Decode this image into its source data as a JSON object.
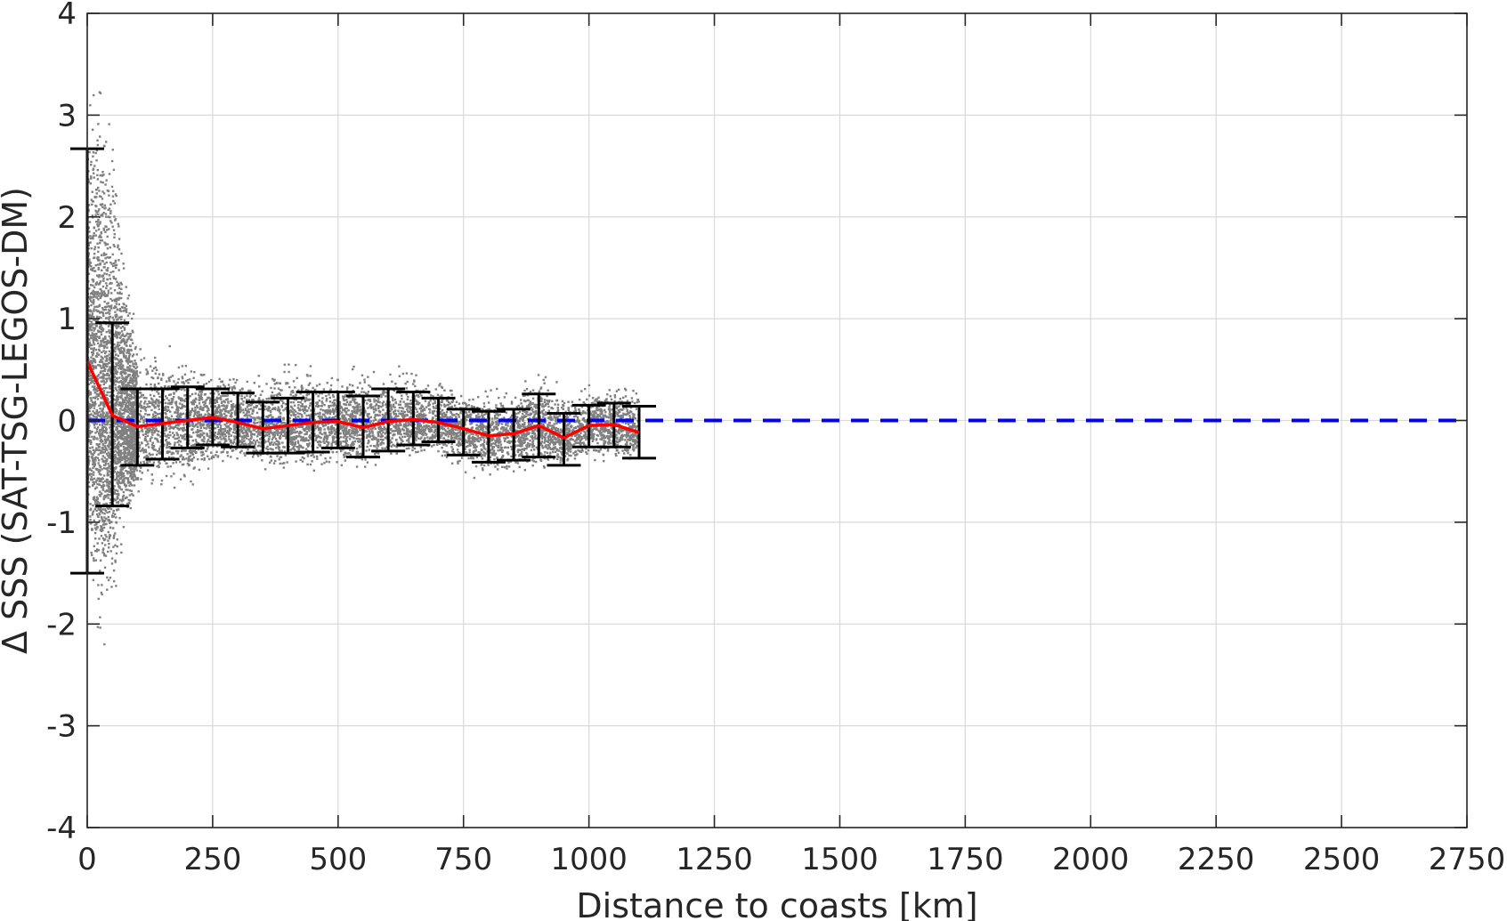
{
  "chart_data": {
    "type": "scatter",
    "title": "",
    "xlabel": "Distance to coasts [km]",
    "ylabel": "Δ SSS (SAT-TSG-LEGOS-DM)",
    "xlim": [
      0,
      2750
    ],
    "ylim": [
      -4,
      4
    ],
    "xticks": [
      "0",
      "250",
      "500",
      "750",
      "1000",
      "1250",
      "1500",
      "1750",
      "2000",
      "2250",
      "2500",
      "2750"
    ],
    "yticks": [
      "-4",
      "-3",
      "-2",
      "-1",
      "0",
      "1",
      "2",
      "3",
      "4"
    ],
    "grid": true,
    "legend": "none",
    "colors": {
      "scatter": "#808080",
      "mean_line": "#ff0000",
      "errorbars": "#000000",
      "zero_line": "#0000ff",
      "grid": "#d9d9d9",
      "axes": "#262626"
    },
    "scatter_envelope": {
      "description_of_visible_cloud": "dense grey points",
      "x": [
        0,
        25,
        50,
        75,
        100,
        150,
        200,
        250,
        300,
        350,
        400,
        450,
        500,
        550,
        600,
        650,
        700,
        750,
        800,
        850,
        900,
        950,
        1000,
        1050,
        1100
      ],
      "y_low": [
        -1.6,
        -2.6,
        -2.0,
        -1.2,
        -0.9,
        -0.8,
        -0.9,
        -0.55,
        -0.5,
        -0.5,
        -0.5,
        -0.55,
        -0.5,
        -0.55,
        -0.45,
        -0.4,
        -0.4,
        -0.55,
        -0.65,
        -0.6,
        -0.6,
        -0.5,
        -0.45,
        -0.45,
        -0.4
      ],
      "y_high": [
        3.2,
        4.0,
        3.0,
        1.8,
        1.0,
        0.8,
        0.65,
        0.55,
        0.5,
        0.5,
        0.7,
        0.6,
        0.55,
        0.55,
        0.6,
        0.55,
        0.45,
        0.35,
        0.35,
        0.4,
        0.55,
        0.35,
        0.4,
        0.4,
        0.4
      ]
    },
    "mean_line": {
      "x": [
        0,
        50,
        100,
        150,
        200,
        250,
        300,
        350,
        400,
        450,
        500,
        550,
        600,
        650,
        700,
        750,
        800,
        850,
        900,
        950,
        1000,
        1050,
        1100
      ],
      "y": [
        0.58,
        0.05,
        -0.06,
        -0.03,
        0.0,
        0.03,
        -0.02,
        -0.08,
        -0.05,
        -0.02,
        -0.01,
        -0.07,
        -0.01,
        0.01,
        -0.02,
        -0.08,
        -0.15,
        -0.13,
        -0.05,
        -0.17,
        -0.05,
        -0.04,
        -0.12
      ]
    },
    "error_bars": {
      "x": [
        0,
        50,
        100,
        150,
        200,
        250,
        300,
        350,
        400,
        450,
        500,
        550,
        600,
        650,
        700,
        750,
        800,
        850,
        900,
        950,
        1000,
        1050,
        1100
      ],
      "upper": [
        2.67,
        0.96,
        0.31,
        0.31,
        0.33,
        0.31,
        0.27,
        0.18,
        0.22,
        0.28,
        0.28,
        0.24,
        0.31,
        0.28,
        0.22,
        0.11,
        0.09,
        0.11,
        0.26,
        0.07,
        0.15,
        0.17,
        0.14
      ],
      "lower": [
        -1.5,
        -0.84,
        -0.44,
        -0.38,
        -0.27,
        -0.24,
        -0.26,
        -0.32,
        -0.32,
        -0.31,
        -0.27,
        -0.36,
        -0.3,
        -0.24,
        -0.21,
        -0.34,
        -0.41,
        -0.39,
        -0.36,
        -0.44,
        -0.26,
        -0.26,
        -0.37
      ]
    },
    "reference_line": {
      "y": 0,
      "style": "dashed"
    }
  }
}
